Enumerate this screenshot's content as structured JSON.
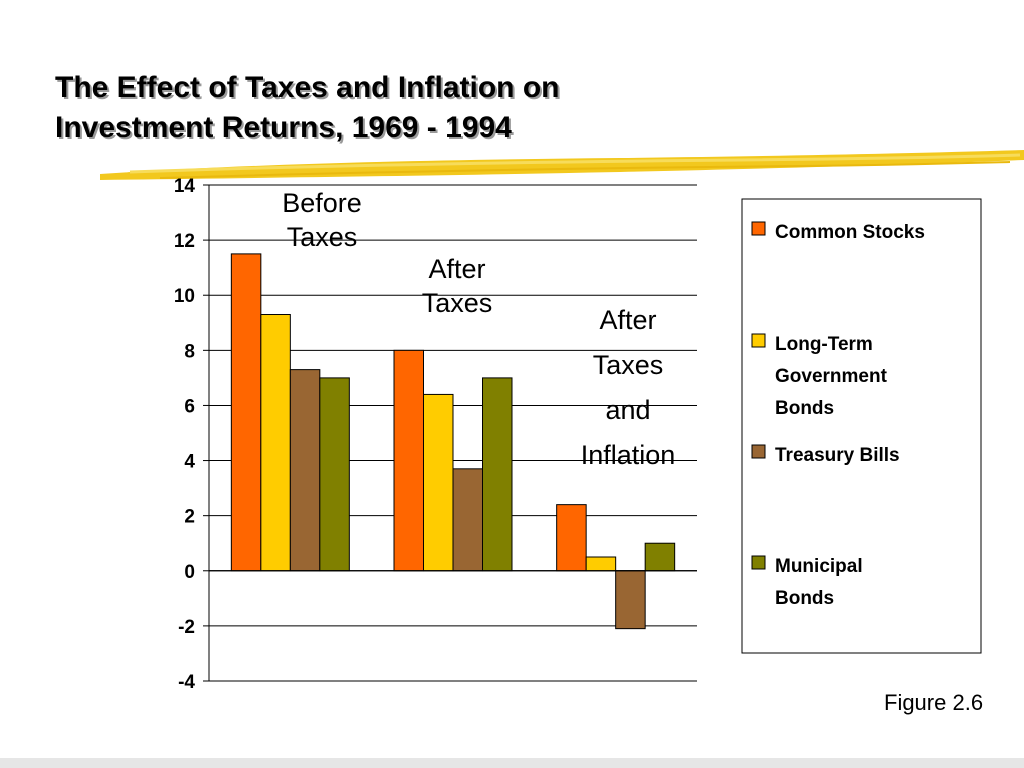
{
  "slide": {
    "title_line1": "The Effect of Taxes and Inflation on",
    "title_line2": "Investment Returns, 1969 - 1994",
    "figure_label": "Figure 2.6",
    "accent_color": "#f2c81e"
  },
  "chart_data": {
    "type": "bar",
    "title": "",
    "xlabel": "",
    "ylabel": "",
    "ylim": [
      -4,
      14
    ],
    "yticks": [
      14,
      12,
      10,
      8,
      6,
      4,
      2,
      0,
      -2,
      -4
    ],
    "grid": true,
    "legend_position": "right",
    "categories": [
      {
        "lines": [
          "Before",
          "Taxes"
        ]
      },
      {
        "lines": [
          "After",
          "Taxes"
        ]
      },
      {
        "lines": [
          "After",
          "Taxes",
          "and",
          "Inflation"
        ]
      }
    ],
    "series": [
      {
        "name_lines": [
          "Common Stocks"
        ],
        "color": "#ff6600",
        "values": [
          11.5,
          8.0,
          2.4
        ]
      },
      {
        "name_lines": [
          "Long-Term",
          "Government",
          "Bonds"
        ],
        "color": "#ffcc00",
        "values": [
          9.3,
          6.4,
          0.5
        ]
      },
      {
        "name_lines": [
          "Treasury Bills"
        ],
        "color": "#996633",
        "values": [
          7.3,
          3.7,
          -2.1
        ]
      },
      {
        "name_lines": [
          "Municipal",
          "Bonds"
        ],
        "color": "#808000",
        "values": [
          7.0,
          7.0,
          1.0
        ]
      }
    ]
  }
}
